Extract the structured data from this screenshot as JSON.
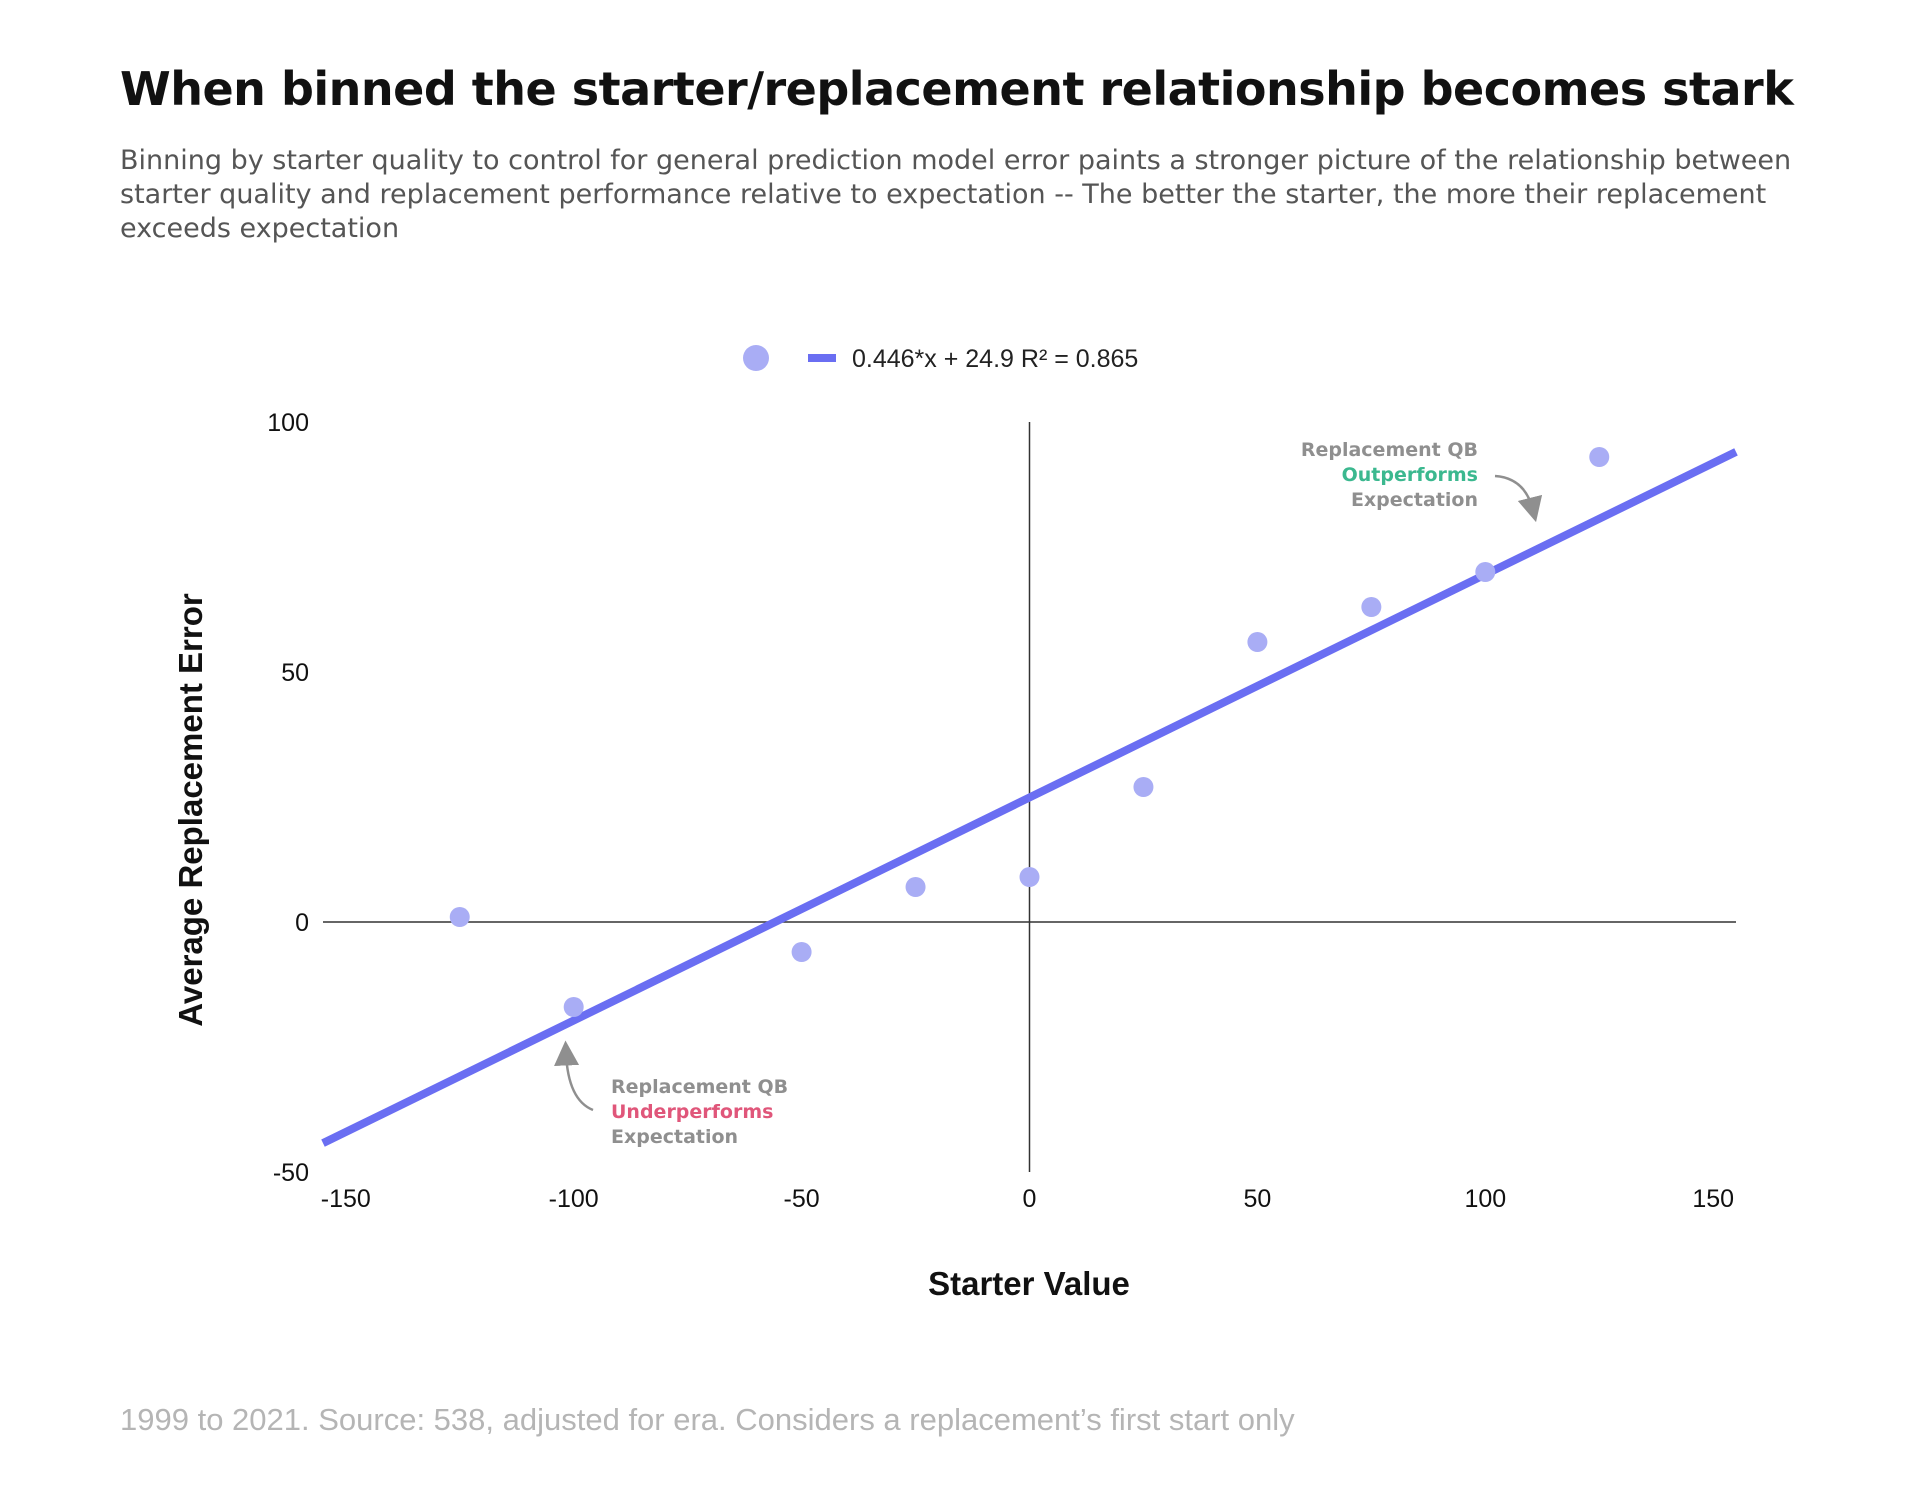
{
  "title": "When binned the starter/replacement relationship becomes stark",
  "subtitle": "Binning by starter quality to control for general prediction model error paints a stronger picture of the relationship between starter quality and replacement performance relative to expectation -- The better the starter, the more their replacement exceeds expectation",
  "footer": "1999 to 2021. Source: 538, adjusted for era. Considers a replacement’s first start only",
  "colors": {
    "points": "#a9adf5",
    "trendline": "#6a6ef2",
    "outperforms": "#3bb88f",
    "underperforms": "#e0567a",
    "annotation_gray": "#8f8f8f"
  },
  "chart_data": {
    "type": "scatter",
    "xlabel": "Starter Value",
    "ylabel": "Average Replacement Error",
    "xlim": [
      -155,
      155
    ],
    "ylim": [
      -50,
      100
    ],
    "x_ticks": [
      "-150",
      "-100",
      "-50",
      "0",
      "50",
      "100",
      "150"
    ],
    "y_ticks": [
      "100",
      "50",
      "0",
      "-50"
    ],
    "x": [
      -125,
      -100,
      -50,
      -25,
      0,
      25,
      50,
      75,
      100,
      125
    ],
    "y": [
      1,
      -17,
      -6,
      7,
      9,
      27,
      56,
      63,
      70,
      93
    ],
    "trendline": {
      "slope": 0.446,
      "intercept": 24.9,
      "r2": 0.865,
      "label": "0.446*x + 24.9 R² = 0.865"
    },
    "legend_position": "top-center",
    "annotations": {
      "outperforms": {
        "line1": "Replacement QB",
        "emphasis": "Outperforms",
        "line3": "Expectation"
      },
      "underperforms": {
        "line1": "Replacement QB",
        "emphasis": "Underperforms",
        "line3": "Expectation"
      }
    }
  }
}
